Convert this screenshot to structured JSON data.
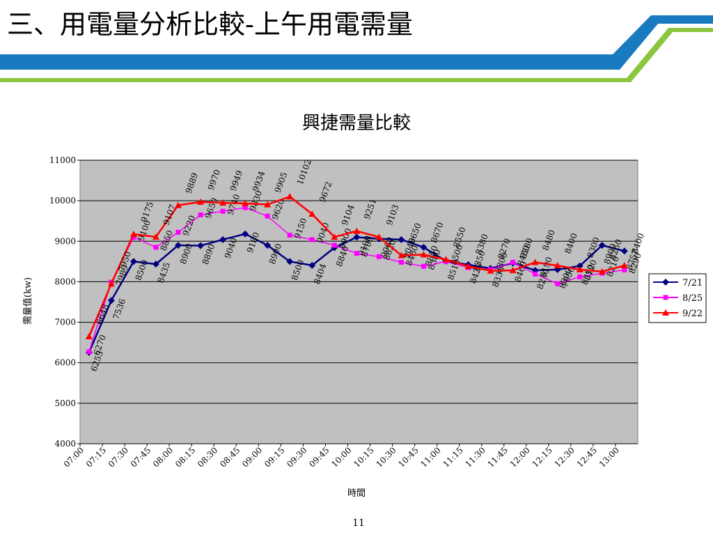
{
  "slide_title": "三、用電量分析比較-上午用電需量",
  "page_number": "11",
  "chart_data": {
    "type": "line",
    "title": "興捷需量比較",
    "x_label": "時間",
    "y_label": "需量值(kw)",
    "categories": [
      "07:00",
      "07:15",
      "07:30",
      "07:45",
      "08:00",
      "08:15",
      "08:30",
      "08:45",
      "09:00",
      "09:15",
      "09:30",
      "09:45",
      "10:00",
      "10:15",
      "10:30",
      "10:45",
      "11:00",
      "11:15",
      "11:30",
      "11:45",
      "12:00",
      "12:15",
      "12:30",
      "12:45",
      "13:00"
    ],
    "series": [
      {
        "name": "7/21",
        "color": "#000080",
        "marker": "diamond",
        "values": [
          6253,
          7536,
          8500,
          8435,
          8900,
          8890,
          9040,
          9180,
          8900,
          8500,
          8404,
          8840,
          9100,
          9060,
          9040,
          8850,
          8510,
          8420,
          8330,
          8460,
          8280,
          8300,
          8390,
          8900,
          8757
        ]
      },
      {
        "name": "8/25",
        "color": "#ff00ff",
        "marker": "square",
        "values": [
          6270,
          7989,
          9100,
          8850,
          9220,
          9650,
          9740,
          9830,
          9620,
          9150,
          9040,
          8900,
          8700,
          8620,
          8480,
          8380,
          8500,
          8350,
          8300,
          8480,
          8190,
          7950,
          8120,
          8210,
          8290
        ]
      },
      {
        "name": "9/22",
        "color": "#ff0000",
        "marker": "triangle",
        "values": [
          6648,
          7950,
          9175,
          9107,
          9889,
          9970,
          9949,
          9934,
          9905,
          10102,
          9672,
          9104,
          9251,
          9103,
          8650,
          8670,
          8550,
          8380,
          8270,
          8280,
          8480,
          8400,
          8300,
          8250,
          8400
        ]
      }
    ],
    "ylim": [
      4000,
      11000
    ],
    "yticks": [
      4000,
      5000,
      6000,
      7000,
      8000,
      9000,
      10000,
      11000
    ],
    "grid": true,
    "legend": "right"
  }
}
